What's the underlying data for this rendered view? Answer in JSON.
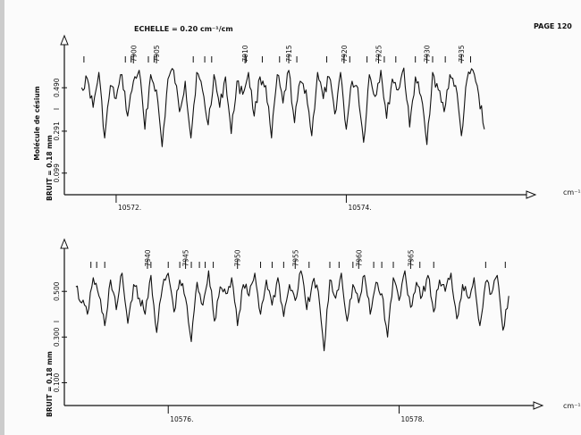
{
  "header": {
    "scale": "ECHELLE = 0.20 cm⁻¹/cm",
    "page": "PAGE 120",
    "unit": "cm⁻¹"
  },
  "chart_data": [
    {
      "type": "line",
      "side_labels": [
        "BRUIT = 0.18 mm",
        "Molécule de césium"
      ],
      "y_marker": "I",
      "yticks": [
        0.099,
        0.291,
        0.49
      ],
      "ytick_labels": [
        "0.099",
        "0.291",
        "0.490"
      ],
      "xticks": [
        10572,
        10574
      ],
      "xtick_labels": [
        "10572.",
        "10574."
      ],
      "xlim": [
        10571.55,
        10575.55
      ],
      "ylim": [
        0.0,
        0.72
      ],
      "line_ids": [
        7900,
        7905,
        7910,
        7915,
        7920,
        7925,
        7930,
        7935
      ],
      "line_id_x": [
        10572.15,
        10572.35,
        10573.12,
        10573.5,
        10573.98,
        10574.28,
        10574.7,
        10575.0
      ],
      "marker_x": [
        10571.72,
        10572.08,
        10572.13,
        10572.28,
        10572.33,
        10572.67,
        10572.77,
        10572.83,
        10573.13,
        10573.27,
        10573.42,
        10573.57,
        10573.83,
        10573.98,
        10574.03,
        10574.18,
        10574.33,
        10574.43,
        10574.6,
        10574.7,
        10574.75,
        10574.86,
        10575.0,
        10575.08
      ],
      "series": [
        {
          "x": [
            10571.7,
            10571.75,
            10571.8,
            10571.85,
            10571.9,
            10571.95,
            10572.0,
            10572.05,
            10572.1,
            10572.15,
            10572.2,
            10572.25,
            10572.3,
            10572.35,
            10572.4,
            10572.45,
            10572.5,
            10572.55,
            10572.6,
            10572.65,
            10572.7,
            10572.75,
            10572.8,
            10572.85,
            10572.9,
            10572.95,
            10573.0,
            10573.05,
            10573.1,
            10573.15,
            10573.2,
            10573.25,
            10573.3,
            10573.35,
            10573.4,
            10573.45,
            10573.5,
            10573.55,
            10573.6,
            10573.65,
            10573.7,
            10573.75,
            10573.8,
            10573.85,
            10573.9,
            10573.95,
            10574.0,
            10574.05,
            10574.1,
            10574.15,
            10574.2,
            10574.25,
            10574.3,
            10574.35,
            10574.4,
            10574.45,
            10574.5,
            10574.55,
            10574.6,
            10574.65,
            10574.7,
            10574.75,
            10574.8,
            10574.85,
            10574.9,
            10574.95,
            10575.0,
            10575.05,
            10575.1,
            10575.15,
            10575.2
          ],
          "y": [
            0.49,
            0.53,
            0.4,
            0.56,
            0.26,
            0.5,
            0.44,
            0.55,
            0.36,
            0.52,
            0.57,
            0.3,
            0.55,
            0.48,
            0.22,
            0.53,
            0.57,
            0.38,
            0.52,
            0.26,
            0.56,
            0.48,
            0.32,
            0.55,
            0.4,
            0.54,
            0.28,
            0.52,
            0.46,
            0.56,
            0.36,
            0.54,
            0.5,
            0.26,
            0.55,
            0.42,
            0.57,
            0.33,
            0.52,
            0.48,
            0.27,
            0.56,
            0.44,
            0.54,
            0.37,
            0.56,
            0.3,
            0.52,
            0.49,
            0.24,
            0.55,
            0.45,
            0.57,
            0.35,
            0.53,
            0.48,
            0.58,
            0.31,
            0.54,
            0.45,
            0.23,
            0.56,
            0.48,
            0.38,
            0.55,
            0.5,
            0.27,
            0.53,
            0.57,
            0.46,
            0.3
          ]
        }
      ]
    },
    {
      "type": "line",
      "side_labels": [
        "BRUIT = 0.18 mm"
      ],
      "y_marker": "I",
      "yticks": [
        0.1,
        0.3,
        0.5
      ],
      "ytick_labels": [
        "0.100",
        "0.300",
        "0.500"
      ],
      "xticks": [
        10576,
        10578
      ],
      "xtick_labels": [
        "10576.",
        "10578."
      ],
      "xlim": [
        10575.1,
        10579.15
      ],
      "ylim": [
        0.0,
        0.72
      ],
      "line_ids": [
        7940,
        7945,
        7950,
        7955,
        7960,
        7965
      ],
      "line_id_x": [
        10575.82,
        10576.15,
        10576.6,
        10577.1,
        10577.65,
        10578.1
      ],
      "marker_x": [
        10575.33,
        10575.38,
        10575.45,
        10575.85,
        10576.0,
        10576.1,
        10576.2,
        10576.27,
        10576.32,
        10576.39,
        10576.8,
        10576.9,
        10577.0,
        10577.22,
        10577.4,
        10577.48,
        10577.6,
        10577.78,
        10577.85,
        10577.95,
        10578.18,
        10578.3,
        10578.75,
        10578.92
      ],
      "series": [
        {
          "x": [
            10575.2,
            10575.25,
            10575.3,
            10575.35,
            10575.4,
            10575.45,
            10575.5,
            10575.55,
            10575.6,
            10575.65,
            10575.7,
            10575.75,
            10575.8,
            10575.85,
            10575.9,
            10575.95,
            10576.0,
            10576.05,
            10576.1,
            10576.15,
            10576.2,
            10576.25,
            10576.3,
            10576.35,
            10576.4,
            10576.45,
            10576.5,
            10576.55,
            10576.6,
            10576.65,
            10576.7,
            10576.75,
            10576.8,
            10576.85,
            10576.9,
            10576.95,
            10577.0,
            10577.05,
            10577.1,
            10577.15,
            10577.2,
            10577.25,
            10577.3,
            10577.35,
            10577.4,
            10577.45,
            10577.5,
            10577.55,
            10577.6,
            10577.65,
            10577.7,
            10577.75,
            10577.8,
            10577.85,
            10577.9,
            10577.95,
            10578.0,
            10578.05,
            10578.1,
            10578.15,
            10578.2,
            10578.25,
            10578.3,
            10578.35,
            10578.4,
            10578.45,
            10578.5,
            10578.55,
            10578.6,
            10578.65,
            10578.7,
            10578.75,
            10578.8,
            10578.85,
            10578.9,
            10578.95
          ],
          "y": [
            0.52,
            0.45,
            0.4,
            0.56,
            0.48,
            0.35,
            0.55,
            0.42,
            0.58,
            0.36,
            0.53,
            0.47,
            0.4,
            0.57,
            0.32,
            0.52,
            0.58,
            0.41,
            0.55,
            0.47,
            0.28,
            0.54,
            0.44,
            0.59,
            0.37,
            0.52,
            0.49,
            0.56,
            0.35,
            0.53,
            0.48,
            0.58,
            0.4,
            0.55,
            0.44,
            0.56,
            0.39,
            0.53,
            0.46,
            0.59,
            0.42,
            0.54,
            0.5,
            0.24,
            0.55,
            0.47,
            0.58,
            0.37,
            0.53,
            0.45,
            0.57,
            0.4,
            0.54,
            0.49,
            0.3,
            0.56,
            0.46,
            0.59,
            0.43,
            0.54,
            0.48,
            0.57,
            0.41,
            0.55,
            0.5,
            0.58,
            0.38,
            0.53,
            0.47,
            0.56,
            0.35,
            0.54,
            0.49,
            0.57,
            0.33,
            0.48
          ]
        }
      ]
    }
  ]
}
